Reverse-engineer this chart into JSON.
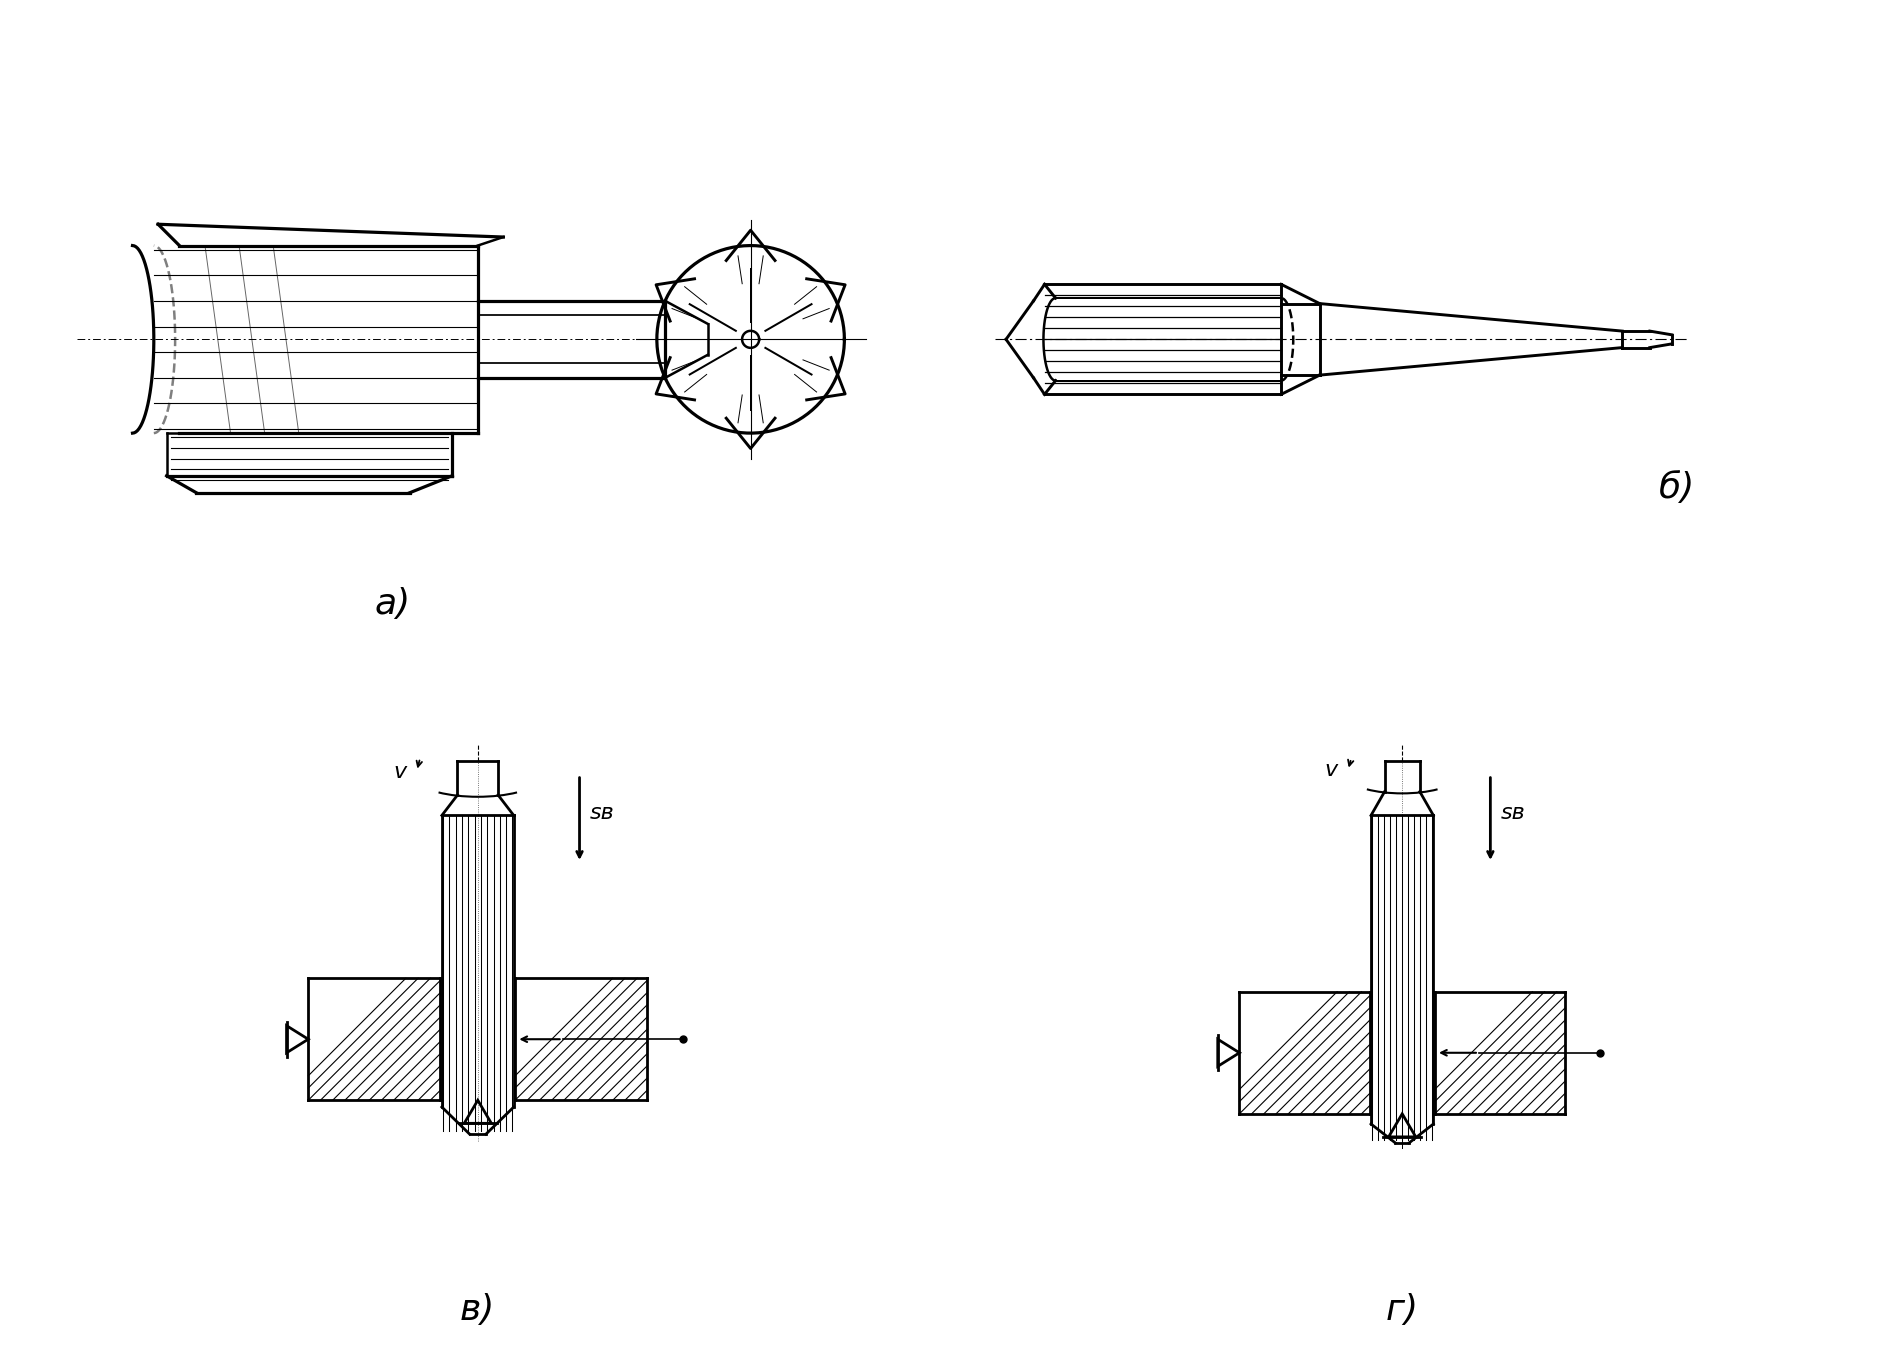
{
  "bg_color": "#ffffff",
  "line_color": "#000000",
  "label_a": "а)",
  "label_b": "б)",
  "label_v": "в)",
  "label_g": "г)",
  "label_v_text": "v",
  "label_s_text": "sв",
  "figsize": [
    18.8,
    13.65
  ],
  "dpi": 100
}
